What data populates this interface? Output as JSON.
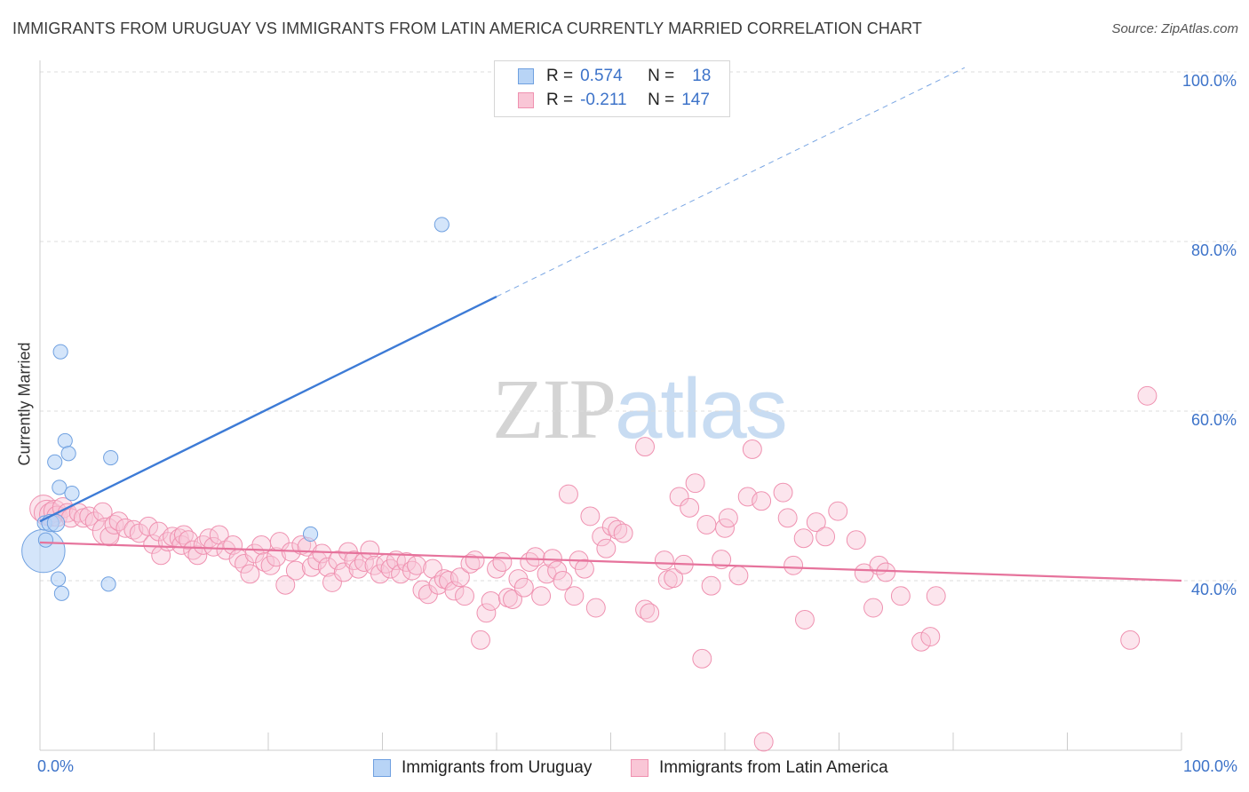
{
  "title": "IMMIGRANTS FROM URUGUAY VS IMMIGRANTS FROM LATIN AMERICA CURRENTLY MARRIED CORRELATION CHART",
  "source": "Source: ZipAtlas.com",
  "watermark": {
    "zip": "ZIP",
    "atlas": "atlas"
  },
  "legend": {
    "r_label": "R =",
    "n_label": "N =",
    "series": [
      {
        "r": "0.574",
        "n": "18",
        "fill": "#b8d4f6",
        "stroke": "#6fa0e0"
      },
      {
        "r": "-0.211",
        "n": "147",
        "fill": "#f9c6d6",
        "stroke": "#ef91b0"
      }
    ]
  },
  "bottom_legend": [
    {
      "label": "Immigrants from Uruguay",
      "fill": "#b8d4f6",
      "stroke": "#6fa0e0"
    },
    {
      "label": "Immigrants from Latin America",
      "fill": "#f9c6d6",
      "stroke": "#ef91b0"
    }
  ],
  "chart_data": {
    "type": "scatter",
    "ylabel": "Currently Married",
    "xlim": [
      0,
      100
    ],
    "ylim": [
      20,
      100
    ],
    "x_tick_labels": [
      "0.0%",
      "100.0%"
    ],
    "y_ticks": [
      {
        "value": 40,
        "label": "40.0%"
      },
      {
        "value": 60,
        "label": "60.0%"
      },
      {
        "value": 80,
        "label": "80.0%"
      },
      {
        "value": 100,
        "label": "100.0%"
      }
    ],
    "grid": "horizontal dashed",
    "colors": {
      "uruguay": "#3d7bd6",
      "latin_america": "#e6739c",
      "axis_label": "#3d73c9"
    },
    "series": [
      {
        "name": "Immigrants from Uruguay",
        "trend": {
          "x0": 0,
          "y0": 47,
          "x1": 40,
          "y1": 73.5,
          "dashed_to_x": 81,
          "dashed_to_y": 100.5
        },
        "points": [
          [
            0.3,
            43.5,
            3
          ],
          [
            0.4,
            46.8,
            1
          ],
          [
            0.5,
            44.8,
            1
          ],
          [
            0.9,
            46.8,
            1.2
          ],
          [
            1.4,
            46.8,
            1.2
          ],
          [
            1.3,
            54.0,
            1
          ],
          [
            1.6,
            40.2,
            1
          ],
          [
            1.7,
            51.0,
            1
          ],
          [
            1.8,
            67.0,
            1
          ],
          [
            1.9,
            38.5,
            1
          ],
          [
            2.2,
            56.5,
            1
          ],
          [
            2.5,
            55.0,
            1
          ],
          [
            2.8,
            50.3,
            1
          ],
          [
            6.0,
            39.6,
            1
          ],
          [
            6.2,
            54.5,
            1
          ],
          [
            23.7,
            45.5,
            1
          ],
          [
            35.2,
            82.0,
            1
          ]
        ]
      },
      {
        "name": "Immigrants from Latin America",
        "trend": {
          "x0": 0,
          "y0": 44.5,
          "x1": 100,
          "y1": 40.0
        },
        "points": [
          [
            0.3,
            48.5,
            1.6
          ],
          [
            0.6,
            48.0,
            1.5
          ],
          [
            1.0,
            47.8,
            1.4
          ],
          [
            1.3,
            48.2,
            1.3
          ],
          [
            1.5,
            47.6,
            1.2
          ],
          [
            2.0,
            48.6,
            1.2
          ],
          [
            2.4,
            48.0,
            1.1
          ],
          [
            2.7,
            47.4,
            1.1
          ],
          [
            3.4,
            48.0,
            1.1
          ],
          [
            3.8,
            47.4,
            1.1
          ],
          [
            4.3,
            47.6,
            1.1
          ],
          [
            4.8,
            47.0,
            1.1
          ],
          [
            5.5,
            48.1,
            1.1
          ],
          [
            5.8,
            45.8,
            1.6
          ],
          [
            6.1,
            45.2,
            1.1
          ],
          [
            6.5,
            46.6,
            1.1
          ],
          [
            6.9,
            47.0,
            1.1
          ],
          [
            7.5,
            46.2,
            1.1
          ],
          [
            8.2,
            46.0,
            1.1
          ],
          [
            8.7,
            45.6,
            1.1
          ],
          [
            9.5,
            46.4,
            1.1
          ],
          [
            9.9,
            44.3,
            1.1
          ],
          [
            10.4,
            45.8,
            1.1
          ],
          [
            10.6,
            43.0,
            1.1
          ],
          [
            11.2,
            44.6,
            1.1
          ],
          [
            11.6,
            45.2,
            1.1
          ],
          [
            12.2,
            45.0,
            1.1
          ],
          [
            12.4,
            44.2,
            1.1
          ],
          [
            12.6,
            45.4,
            1.1
          ],
          [
            13.0,
            44.8,
            1.1
          ],
          [
            13.4,
            43.6,
            1.1
          ],
          [
            13.8,
            43.0,
            1.1
          ],
          [
            14.3,
            44.2,
            1.1
          ],
          [
            14.8,
            45.0,
            1.1
          ],
          [
            15.2,
            44.0,
            1.1
          ],
          [
            15.7,
            45.4,
            1.1
          ],
          [
            16.3,
            43.6,
            1.1
          ],
          [
            16.9,
            44.2,
            1.1
          ],
          [
            17.4,
            42.6,
            1.1
          ],
          [
            17.9,
            42.0,
            1.1
          ],
          [
            18.4,
            40.8,
            1.1
          ],
          [
            18.8,
            43.2,
            1.1
          ],
          [
            19.4,
            44.2,
            1.1
          ],
          [
            19.7,
            42.2,
            1.1
          ],
          [
            20.2,
            41.8,
            1.1
          ],
          [
            20.7,
            42.8,
            1.1
          ],
          [
            21.0,
            44.6,
            1.1
          ],
          [
            21.5,
            39.5,
            1.1
          ],
          [
            22.0,
            43.4,
            1.1
          ],
          [
            22.4,
            41.2,
            1.1
          ],
          [
            22.9,
            44.2,
            1.1
          ],
          [
            23.4,
            44.0,
            1.1
          ],
          [
            23.8,
            41.6,
            1.1
          ],
          [
            24.3,
            42.4,
            1.1
          ],
          [
            24.7,
            43.2,
            1.1
          ],
          [
            25.2,
            41.6,
            1.1
          ],
          [
            25.6,
            39.8,
            1.1
          ],
          [
            26.1,
            42.4,
            1.1
          ],
          [
            26.6,
            41.0,
            1.1
          ],
          [
            27.0,
            43.4,
            1.1
          ],
          [
            27.5,
            42.4,
            1.1
          ],
          [
            27.9,
            41.4,
            1.1
          ],
          [
            28.4,
            42.2,
            1.1
          ],
          [
            28.9,
            43.6,
            1.1
          ],
          [
            29.3,
            41.8,
            1.1
          ],
          [
            29.8,
            40.8,
            1.1
          ],
          [
            30.3,
            42.0,
            1.1
          ],
          [
            30.7,
            41.4,
            1.1
          ],
          [
            31.2,
            42.4,
            1.1
          ],
          [
            31.6,
            40.8,
            1.1
          ],
          [
            32.1,
            42.2,
            1.1
          ],
          [
            32.6,
            41.2,
            1.1
          ],
          [
            33.0,
            41.8,
            1.1
          ],
          [
            33.5,
            38.9,
            1.1
          ],
          [
            34.0,
            38.4,
            1.1
          ],
          [
            34.4,
            41.4,
            1.1
          ],
          [
            34.9,
            39.5,
            1.1
          ],
          [
            35.4,
            40.2,
            1.1
          ],
          [
            35.8,
            40.0,
            1.1
          ],
          [
            36.3,
            38.8,
            1.1
          ],
          [
            36.8,
            40.4,
            1.1
          ],
          [
            37.2,
            38.2,
            1.1
          ],
          [
            37.7,
            42.0,
            1.1
          ],
          [
            38.1,
            42.4,
            1.1
          ],
          [
            38.6,
            33.0,
            1.1
          ],
          [
            39.1,
            36.2,
            1.1
          ],
          [
            39.5,
            37.6,
            1.1
          ],
          [
            40.0,
            41.4,
            1.1
          ],
          [
            40.5,
            42.2,
            1.1
          ],
          [
            41.0,
            38.0,
            1.1
          ],
          [
            41.4,
            37.8,
            1.1
          ],
          [
            41.9,
            40.2,
            1.1
          ],
          [
            42.4,
            39.2,
            1.1
          ],
          [
            42.9,
            42.2,
            1.1
          ],
          [
            43.4,
            42.8,
            1.1
          ],
          [
            43.9,
            38.2,
            1.1
          ],
          [
            44.4,
            40.8,
            1.1
          ],
          [
            44.9,
            42.6,
            1.1
          ],
          [
            45.3,
            41.2,
            1.1
          ],
          [
            45.8,
            40.0,
            1.1
          ],
          [
            46.3,
            50.2,
            1.1
          ],
          [
            46.8,
            38.2,
            1.1
          ],
          [
            47.2,
            42.4,
            1.1
          ],
          [
            47.7,
            41.4,
            1.1
          ],
          [
            48.2,
            47.6,
            1.1
          ],
          [
            48.7,
            36.8,
            1.1
          ],
          [
            49.2,
            45.2,
            1.1
          ],
          [
            49.6,
            43.8,
            1.1
          ],
          [
            50.1,
            46.4,
            1.1
          ],
          [
            50.6,
            46.0,
            1.1
          ],
          [
            51.1,
            45.6,
            1.1
          ],
          [
            53.0,
            36.6,
            1.1
          ],
          [
            53.4,
            36.2,
            1.1
          ],
          [
            53.0,
            55.8,
            1.1
          ],
          [
            54.7,
            42.4,
            1.1
          ],
          [
            55.0,
            40.1,
            1.1
          ],
          [
            55.5,
            40.3,
            1.1
          ],
          [
            56.0,
            49.9,
            1.1
          ],
          [
            56.4,
            41.9,
            1.1
          ],
          [
            56.9,
            48.6,
            1.1
          ],
          [
            57.4,
            51.5,
            1.1
          ],
          [
            58.0,
            30.8,
            1.1
          ],
          [
            58.4,
            46.6,
            1.1
          ],
          [
            58.8,
            39.4,
            1.1
          ],
          [
            59.7,
            42.5,
            1.1
          ],
          [
            60.0,
            46.2,
            1.1
          ],
          [
            60.3,
            47.4,
            1.1
          ],
          [
            61.2,
            40.6,
            1.1
          ],
          [
            62.0,
            49.9,
            1.1
          ],
          [
            62.4,
            55.5,
            1.1
          ],
          [
            63.2,
            49.4,
            1.1
          ],
          [
            63.4,
            21.0,
            1.1
          ],
          [
            65.1,
            50.4,
            1.1
          ],
          [
            65.5,
            47.4,
            1.1
          ],
          [
            66.0,
            41.8,
            1.1
          ],
          [
            67.0,
            35.4,
            1.1
          ],
          [
            68.0,
            46.9,
            1.1
          ],
          [
            66.9,
            45.0,
            1.1
          ],
          [
            68.8,
            45.2,
            1.1
          ],
          [
            69.9,
            48.2,
            1.1
          ],
          [
            71.5,
            44.8,
            1.1
          ],
          [
            72.2,
            40.9,
            1.1
          ],
          [
            73.0,
            36.8,
            1.1
          ],
          [
            73.5,
            41.8,
            1.1
          ],
          [
            74.1,
            41.0,
            1.1
          ],
          [
            75.4,
            38.2,
            1.1
          ],
          [
            77.2,
            32.8,
            1.1
          ],
          [
            78.0,
            33.4,
            1.1
          ],
          [
            78.5,
            38.2,
            1.1
          ],
          [
            95.5,
            33.0,
            1.1
          ],
          [
            97.0,
            61.8,
            1.1
          ]
        ]
      }
    ]
  }
}
